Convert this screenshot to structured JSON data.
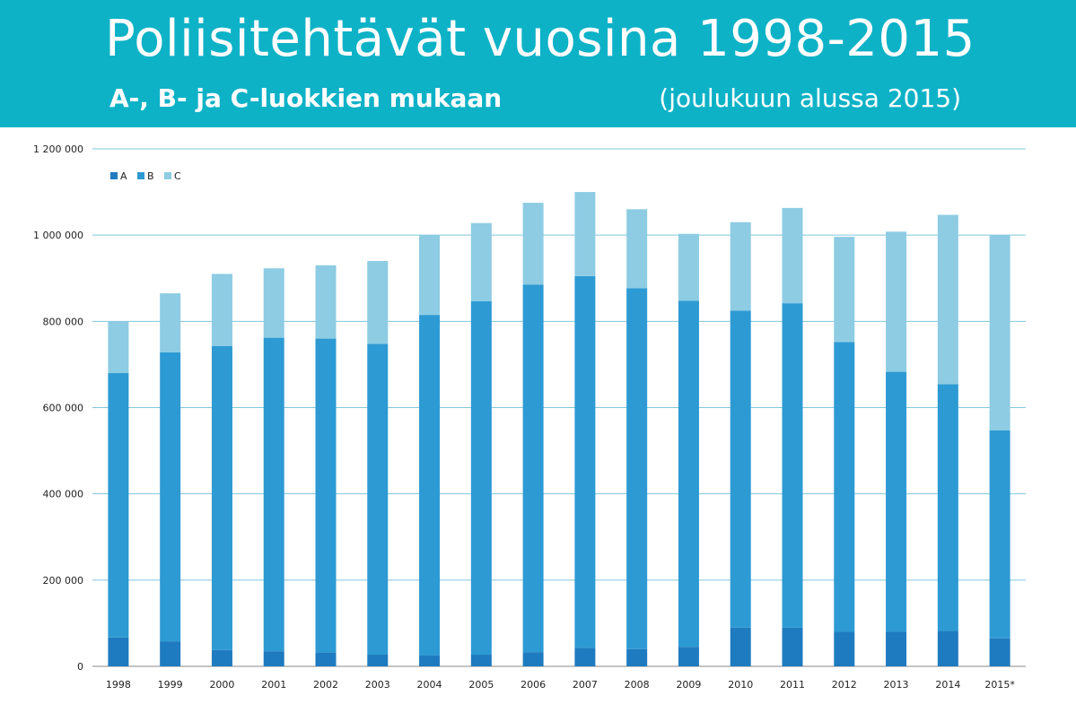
{
  "header": {
    "title": "Poliisitehtävät vuosina 1998-2015",
    "subtitle": "A-, B- ja C-luokkien mukaan",
    "note": "(joulukuun alussa 2015)",
    "background": "#0eb2c7"
  },
  "chart_data": {
    "type": "bar",
    "stacked": true,
    "categories": [
      "1998",
      "1999",
      "2000",
      "2001",
      "2002",
      "2003",
      "2004",
      "2005",
      "2006",
      "2007",
      "2008",
      "2009",
      "2010",
      "2011",
      "2012",
      "2013",
      "2014",
      "2015*"
    ],
    "series": [
      {
        "name": "A",
        "color": "#1f7bbf",
        "values": [
          67000,
          58000,
          38000,
          35000,
          32000,
          27000,
          25000,
          27000,
          33000,
          43000,
          40000,
          45000,
          90000,
          90000,
          80000,
          80000,
          82000,
          65000
        ]
      },
      {
        "name": "B",
        "color": "#2d9ad3",
        "values": [
          613000,
          670000,
          705000,
          727000,
          728000,
          721000,
          790000,
          820000,
          852000,
          862000,
          837000,
          803000,
          735000,
          752000,
          672000,
          603000,
          572000,
          482000
        ]
      },
      {
        "name": "C",
        "color": "#8dcce3",
        "values": [
          120000,
          137000,
          167000,
          161000,
          170000,
          192000,
          185000,
          181000,
          190000,
          195000,
          183000,
          155000,
          205000,
          221000,
          244000,
          325000,
          393000,
          453000
        ]
      }
    ],
    "yticks": [
      "0",
      "200 000",
      "400 000",
      "600 000",
      "800 000",
      "1 000 000",
      "1 200 000"
    ],
    "ylim": [
      0,
      1200000
    ],
    "grid": true,
    "legend": "top-left"
  }
}
